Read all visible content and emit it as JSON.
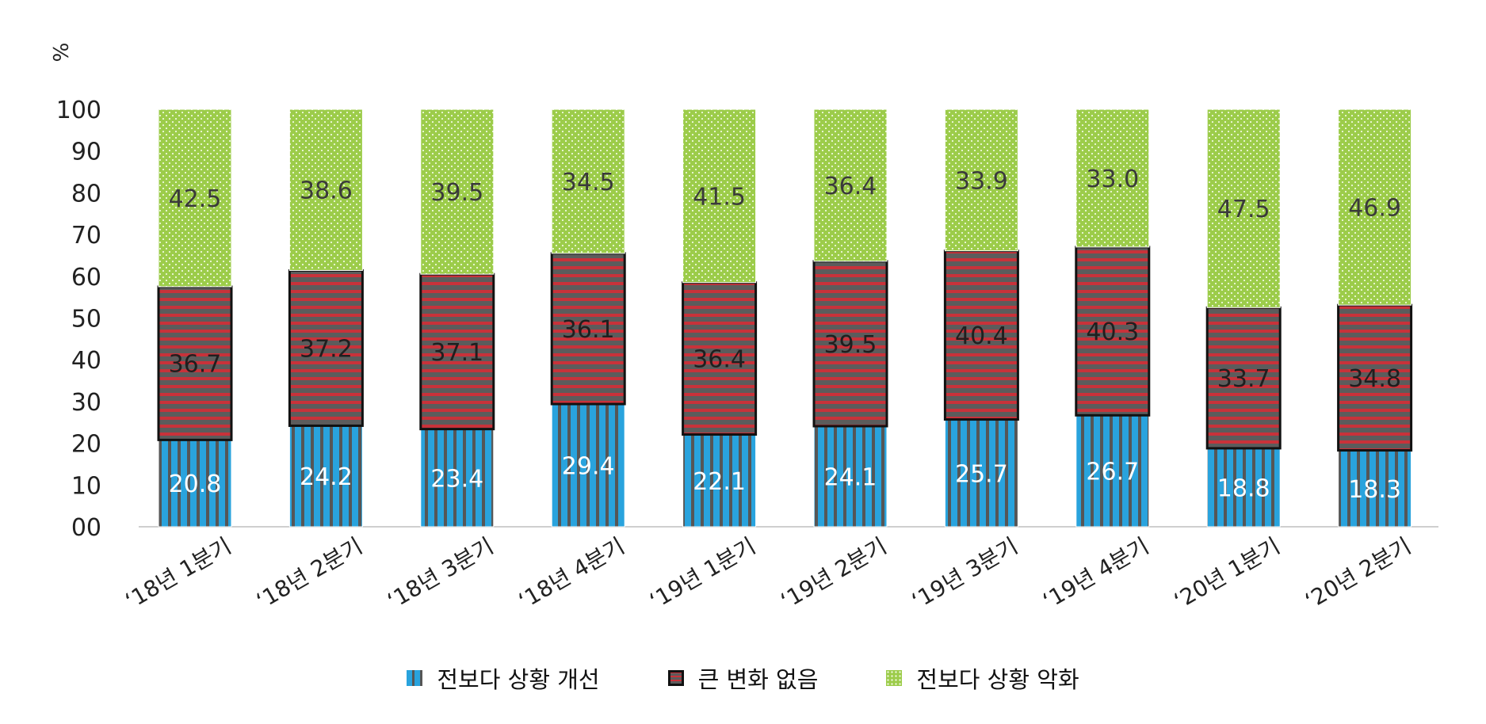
{
  "chart_data": {
    "type": "bar",
    "stacked": true,
    "ylabel": "%",
    "ylim": [
      0,
      100
    ],
    "yticks": [
      "00",
      "10",
      "20",
      "30",
      "40",
      "50",
      "60",
      "70",
      "80",
      "90",
      "100"
    ],
    "categories": [
      "‘18년 1분기",
      "‘18년 2분기",
      "‘18년 3분기",
      "‘18년 4분기",
      "‘19년 1분기",
      "‘19년 2분기",
      "‘19년 3분기",
      "‘19년 4분기",
      "‘20년 1분기",
      "‘20년 2분기"
    ],
    "series": [
      {
        "name": "전보다 상황 개선",
        "values": [
          20.8,
          24.2,
          23.4,
          29.4,
          22.1,
          24.1,
          25.7,
          26.7,
          18.8,
          18.3
        ],
        "labels": [
          "20.8",
          "24.2",
          "23.4",
          "29.4",
          "22.1",
          "24.1",
          "25.7",
          "26.7",
          "18.8",
          "18.3"
        ],
        "color": "#29a3dd"
      },
      {
        "name": "큰 변화 없음",
        "values": [
          36.7,
          37.2,
          37.1,
          36.1,
          36.4,
          39.5,
          40.4,
          40.3,
          33.7,
          34.8
        ],
        "labels": [
          "36.7",
          "37.2",
          "37.1",
          "36.1",
          "36.4",
          "39.5",
          "40.4",
          "40.3",
          "33.7",
          "34.8"
        ],
        "color": "#c8323a"
      },
      {
        "name": "전보다 상황 악화",
        "values": [
          42.5,
          38.6,
          39.5,
          34.5,
          41.5,
          36.4,
          33.9,
          33.0,
          47.5,
          46.9
        ],
        "labels": [
          "42.5",
          "38.6",
          "39.5",
          "34.5",
          "41.5",
          "36.4",
          "33.9",
          "33.0",
          "47.5",
          "46.9"
        ],
        "color": "#9ccc4a"
      }
    ],
    "legend_position": "bottom",
    "grid": false
  }
}
